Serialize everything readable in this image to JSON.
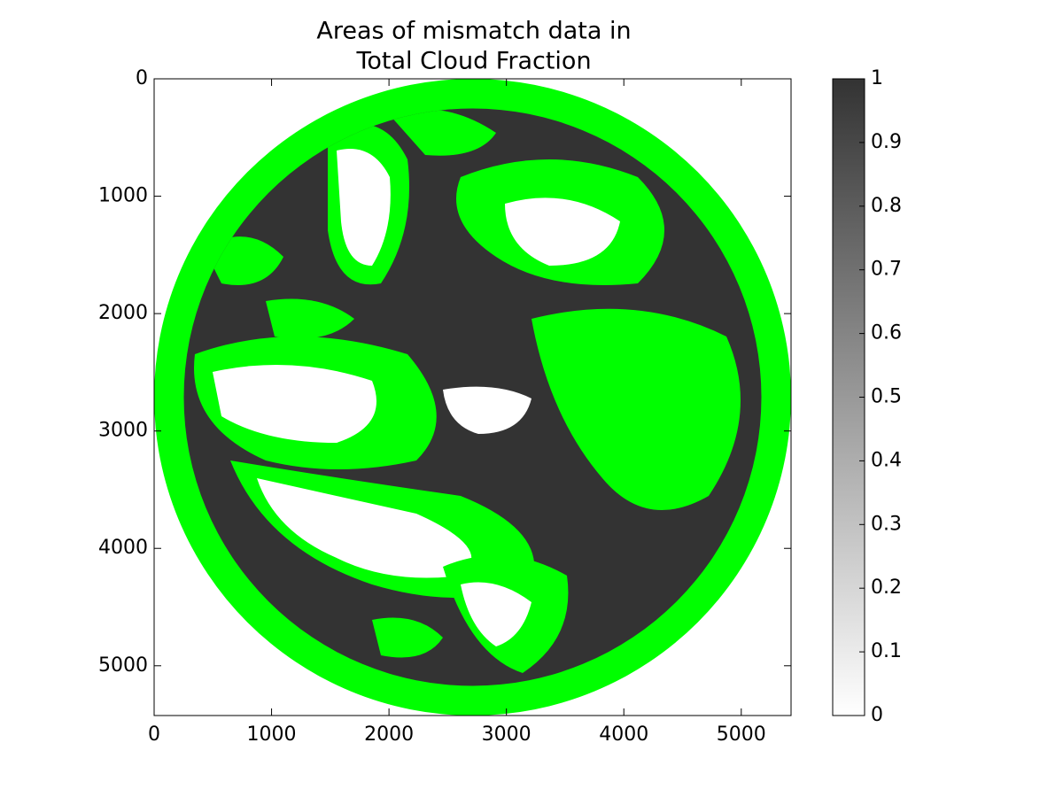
{
  "chart_data": {
    "type": "image",
    "title": [
      "Areas of mismatch data in",
      "Total Cloud Fraction"
    ],
    "xlim": [
      0,
      5424
    ],
    "ylim": [
      5424,
      0
    ],
    "xticks": [
      0,
      1000,
      2000,
      3000,
      4000,
      5000
    ],
    "yticks": [
      0,
      1000,
      2000,
      3000,
      4000,
      5000
    ],
    "colorbar": {
      "clim": [
        0,
        1
      ],
      "colormap": [
        "#ffffff",
        "#333333"
      ],
      "ticks": [
        0,
        0.1,
        0.2,
        0.3,
        0.4,
        0.5,
        0.6,
        0.7,
        0.8,
        0.9,
        1
      ]
    },
    "mask_color": "#00ff00"
  }
}
